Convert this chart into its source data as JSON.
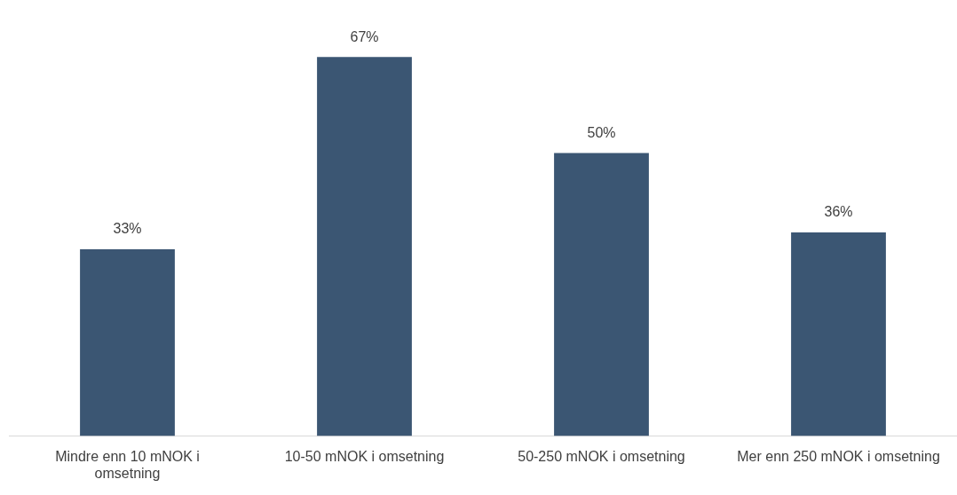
{
  "chart_data": {
    "type": "bar",
    "categories": [
      "Mindre enn 10 mNOK i omsetning",
      "10-50 mNOK i omsetning",
      "50-250 mNOK i omsetning",
      "Mer enn 250 mNOK i omsetning"
    ],
    "values": [
      33,
      67,
      50,
      36
    ],
    "color": "#3b5673",
    "value_labels": [
      "33%",
      "67%",
      "50%",
      "36%"
    ],
    "grid": false,
    "legend": false
  }
}
